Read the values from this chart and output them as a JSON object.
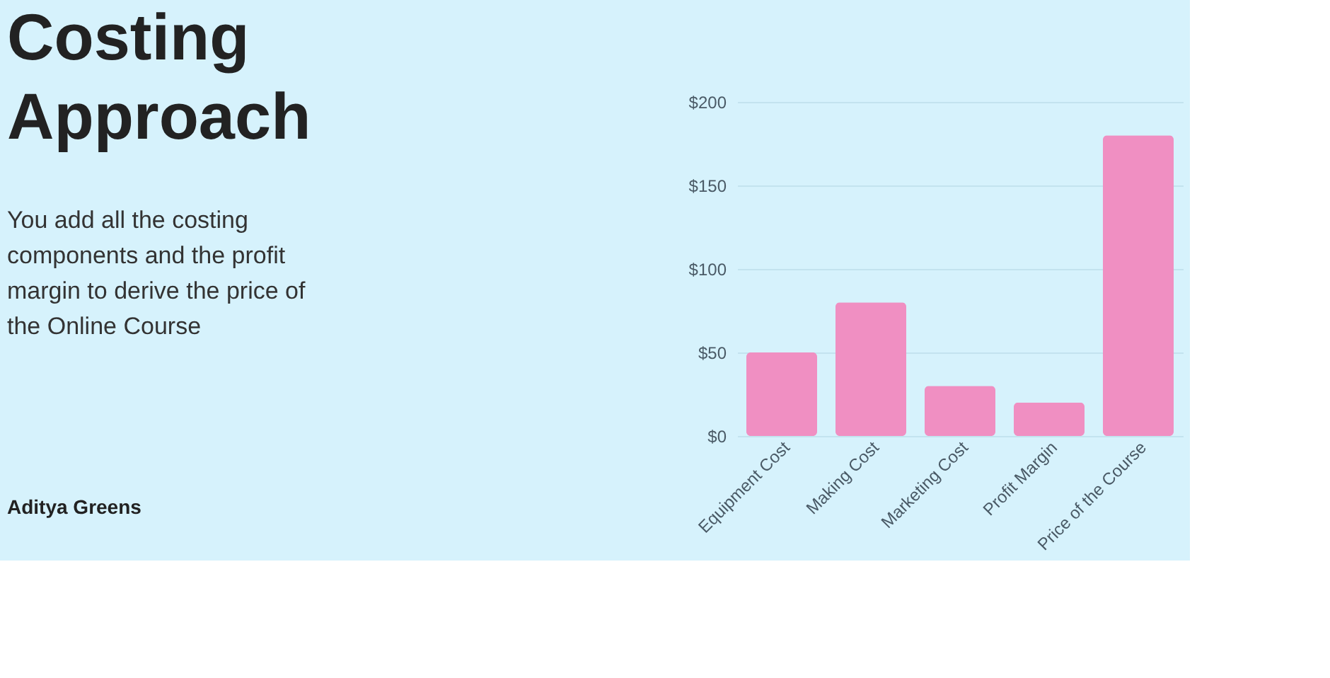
{
  "chart_data": {
    "type": "bar",
    "title": "Costing Approach",
    "subtitle": "You add all the costing components and the profit margin to derive the price of the Online Course",
    "annotations": [
      "Aditya Greens"
    ],
    "categories": [
      "Equipment Cost",
      "Making Cost",
      "Marketing Cost",
      "Profit Margin",
      "Price of the Course"
    ],
    "values": [
      50,
      80,
      30,
      20,
      180
    ],
    "color": "#f08fc2",
    "ylim": [
      0,
      200
    ],
    "yticks": [
      {
        "value": 0,
        "label": "$0"
      },
      {
        "value": 50,
        "label": "$50"
      },
      {
        "value": 100,
        "label": "$100"
      },
      {
        "value": 150,
        "label": "$150"
      },
      {
        "value": 200,
        "label": "$200"
      }
    ],
    "grid": "y"
  }
}
